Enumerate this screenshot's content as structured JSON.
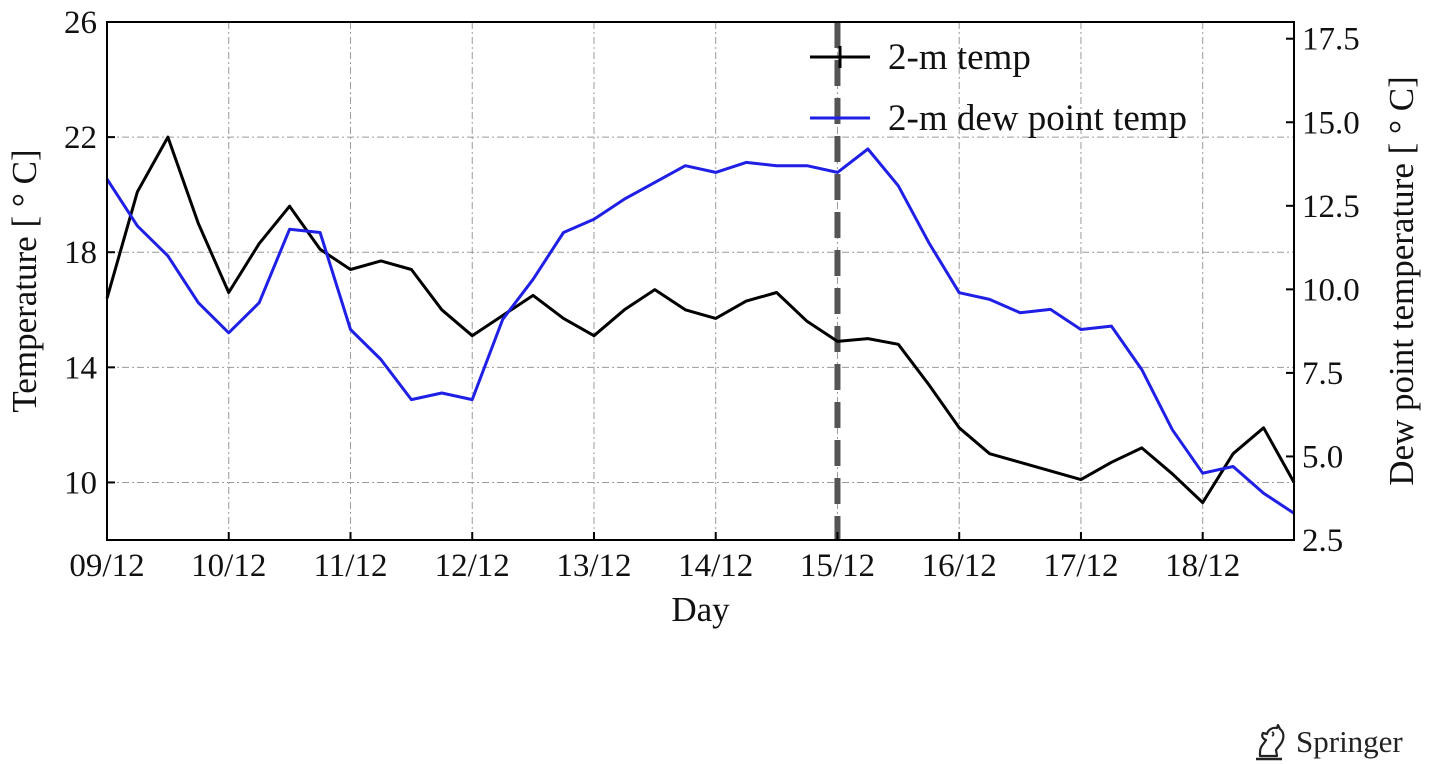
{
  "publisher": {
    "name": "Springer",
    "logo_icon": "springer-horse-head-icon"
  },
  "chart_data": {
    "type": "line",
    "title": "",
    "xlabel": "Day",
    "ylabel_left": "Temperature [ ° C]",
    "ylabel_right": "Dew point temperature [ ° C]",
    "x_tick_labels": [
      "09/12",
      "10/12",
      "11/12",
      "12/12",
      "13/12",
      "14/12",
      "15/12",
      "16/12",
      "17/12",
      "18/12"
    ],
    "xlim": [
      0,
      39
    ],
    "ylim_left": [
      8,
      26
    ],
    "yticks_left": [
      "10",
      "14",
      "18",
      "22",
      "26"
    ],
    "ylim_right": [
      2.5,
      18.0
    ],
    "yticks_right": [
      "2.5",
      "5.0",
      "7.5",
      "10.0",
      "12.5",
      "15.0",
      "17.5"
    ],
    "grid": true,
    "legend_position": "top-right",
    "marker_line": {
      "x_label": "15/12",
      "x": 24,
      "style": "dashed",
      "color": "#555555"
    },
    "series": [
      {
        "name": "2-m temp",
        "axis": "left",
        "color": "#000000",
        "x": [
          0,
          1,
          2,
          3,
          4,
          5,
          6,
          7,
          8,
          9,
          10,
          11,
          12,
          13,
          14,
          15,
          16,
          17,
          18,
          19,
          20,
          21,
          22,
          23,
          24,
          25,
          26,
          27,
          28,
          29,
          30,
          31,
          32,
          33,
          34,
          35,
          36,
          37,
          38,
          39
        ],
        "values": [
          16.4,
          20.1,
          22.0,
          19.0,
          16.6,
          18.3,
          19.6,
          18.1,
          17.4,
          17.7,
          17.4,
          16.0,
          15.1,
          15.8,
          16.5,
          15.7,
          15.1,
          16.0,
          16.7,
          16.0,
          15.7,
          16.3,
          16.6,
          15.6,
          14.9,
          15.0,
          14.8,
          13.4,
          11.9,
          11.0,
          10.7,
          10.4,
          10.1,
          10.7,
          11.2,
          10.3,
          9.3,
          11.0,
          11.9,
          10.0
        ]
      },
      {
        "name": "2-m dew point temp",
        "axis": "right",
        "color": "#1f1fe6",
        "x": [
          0,
          1,
          2,
          3,
          4,
          5,
          6,
          7,
          8,
          9,
          10,
          11,
          12,
          13,
          14,
          15,
          16,
          17,
          18,
          19,
          20,
          21,
          22,
          23,
          24,
          25,
          26,
          27,
          28,
          29,
          30,
          31,
          32,
          33,
          34,
          35,
          36,
          37,
          38,
          39
        ],
        "values": [
          13.3,
          11.9,
          11.0,
          9.6,
          8.7,
          9.6,
          11.8,
          11.7,
          8.8,
          7.9,
          6.7,
          6.9,
          6.7,
          9.1,
          10.3,
          11.7,
          12.1,
          12.7,
          13.2,
          13.7,
          13.5,
          13.8,
          13.7,
          13.7,
          13.5,
          14.2,
          13.1,
          11.4,
          9.9,
          9.7,
          9.3,
          9.4,
          8.8,
          8.9,
          7.6,
          5.8,
          4.5,
          4.7,
          3.9,
          3.3
        ]
      }
    ]
  }
}
